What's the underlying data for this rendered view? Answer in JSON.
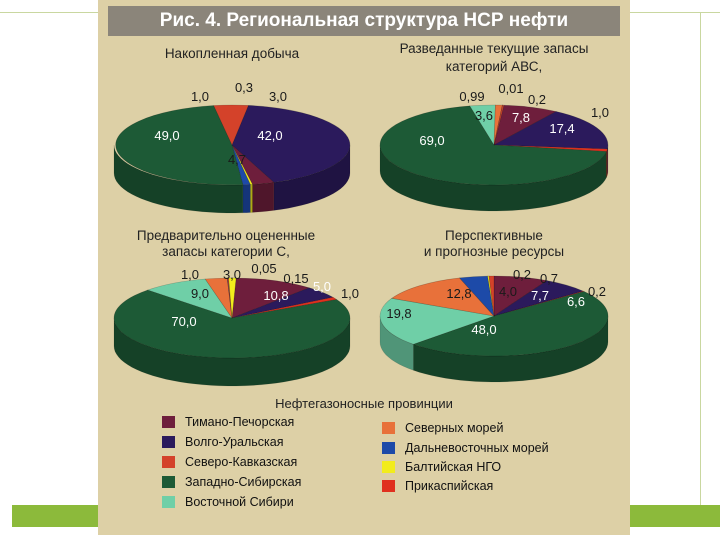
{
  "figure_title": "Рис. 4. Региональная структура НСР нефти",
  "legend_title": "Нефтегазоносные провинции",
  "provinces": [
    {
      "key": "timan",
      "name": "Тимано-Печорская",
      "color": "#6e1e3c"
    },
    {
      "key": "volga",
      "name": "Волго-Уральская",
      "color": "#2b1a5c"
    },
    {
      "key": "kavkaz",
      "name": "Северо-Кавказская",
      "color": "#d4422a"
    },
    {
      "key": "zapsib",
      "name": "Западно-Сибирская",
      "color": "#1d5a36"
    },
    {
      "key": "vostsib",
      "name": "Восточной Сибири",
      "color": "#6fcfa7"
    },
    {
      "key": "sevmor",
      "name": "Северных морей",
      "color": "#e8713a"
    },
    {
      "key": "dalvost",
      "name": "Дальневосточных морей",
      "color": "#1d4aa8"
    },
    {
      "key": "balt",
      "name": "Балтийская НГО",
      "color": "#f2ec1c"
    },
    {
      "key": "kasp",
      "name": "Прикаспийская",
      "color": "#e0301e"
    }
  ],
  "chart_data": [
    {
      "type": "pie",
      "title": "Накопленная добыча",
      "slices": [
        {
          "province": "volga",
          "value": 42.0,
          "label": "42,0"
        },
        {
          "province": "timan",
          "value": 3.0,
          "label": "3,0"
        },
        {
          "province": "balt",
          "value": 0.3,
          "label": "0,3"
        },
        {
          "province": "dalvost",
          "value": 1.0,
          "label": "1,0"
        },
        {
          "province": "zapsib",
          "value": 49.0,
          "label": "49,0"
        },
        {
          "province": "kavkaz",
          "value": 4.7,
          "label": "4,7"
        }
      ]
    },
    {
      "type": "pie",
      "title": "Разведанные текущие запасы категорий АВС,",
      "slices": [
        {
          "province": "timan",
          "value": 7.8,
          "label": "7,8"
        },
        {
          "province": "volga",
          "value": 17.4,
          "label": "17,4"
        },
        {
          "province": "kasp",
          "value": 1.0,
          "label": "1,0"
        },
        {
          "province": "zapsib",
          "value": 69.0,
          "label": "69,0"
        },
        {
          "province": "vostsib",
          "value": 3.6,
          "label": "3,6"
        },
        {
          "province": "sevmor",
          "value": 0.99,
          "label": "0,99"
        },
        {
          "province": "dalvost",
          "value": 0.01,
          "label": "0,01"
        },
        {
          "province": "kavkaz",
          "value": 0.2,
          "label": "0,2"
        }
      ]
    },
    {
      "type": "pie",
      "title": "Предварительно оцененные запасы категории С,",
      "slices": [
        {
          "province": "timan",
          "value": 10.8,
          "label": "10,8"
        },
        {
          "province": "volga",
          "value": 5.0,
          "label": "5,0"
        },
        {
          "province": "kasp",
          "value": 1.0,
          "label": "1,0"
        },
        {
          "province": "zapsib",
          "value": 70.0,
          "label": "70,0"
        },
        {
          "province": "vostsib",
          "value": 9.0,
          "label": "9,0"
        },
        {
          "province": "sevmor",
          "value": 3.0,
          "label": "3,0"
        },
        {
          "province": "dalvost",
          "value": 0.05,
          "label": "0,05"
        },
        {
          "province": "kavkaz",
          "value": 0.15,
          "label": "0,15"
        },
        {
          "province": "balt",
          "value": 1.0,
          "label": "1,0"
        }
      ]
    },
    {
      "type": "pie",
      "title": "Перспективные и прогнозные ресурсы",
      "slices": [
        {
          "province": "timan",
          "value": 7.7,
          "label": "7,7"
        },
        {
          "province": "volga",
          "value": 6.6,
          "label": "6,6"
        },
        {
          "province": "kasp",
          "value": 0.2,
          "label": "0,2"
        },
        {
          "province": "zapsib",
          "value": 48.0,
          "label": "48,0"
        },
        {
          "province": "vostsib",
          "value": 19.8,
          "label": "19,8"
        },
        {
          "province": "sevmor",
          "value": 12.8,
          "label": "12,8"
        },
        {
          "province": "dalvost",
          "value": 4.0,
          "label": "4,0"
        },
        {
          "province": "balt",
          "value": 0.2,
          "label": "0,2"
        },
        {
          "province": "kavkaz",
          "value": 0.7,
          "label": "0,7"
        }
      ]
    }
  ]
}
